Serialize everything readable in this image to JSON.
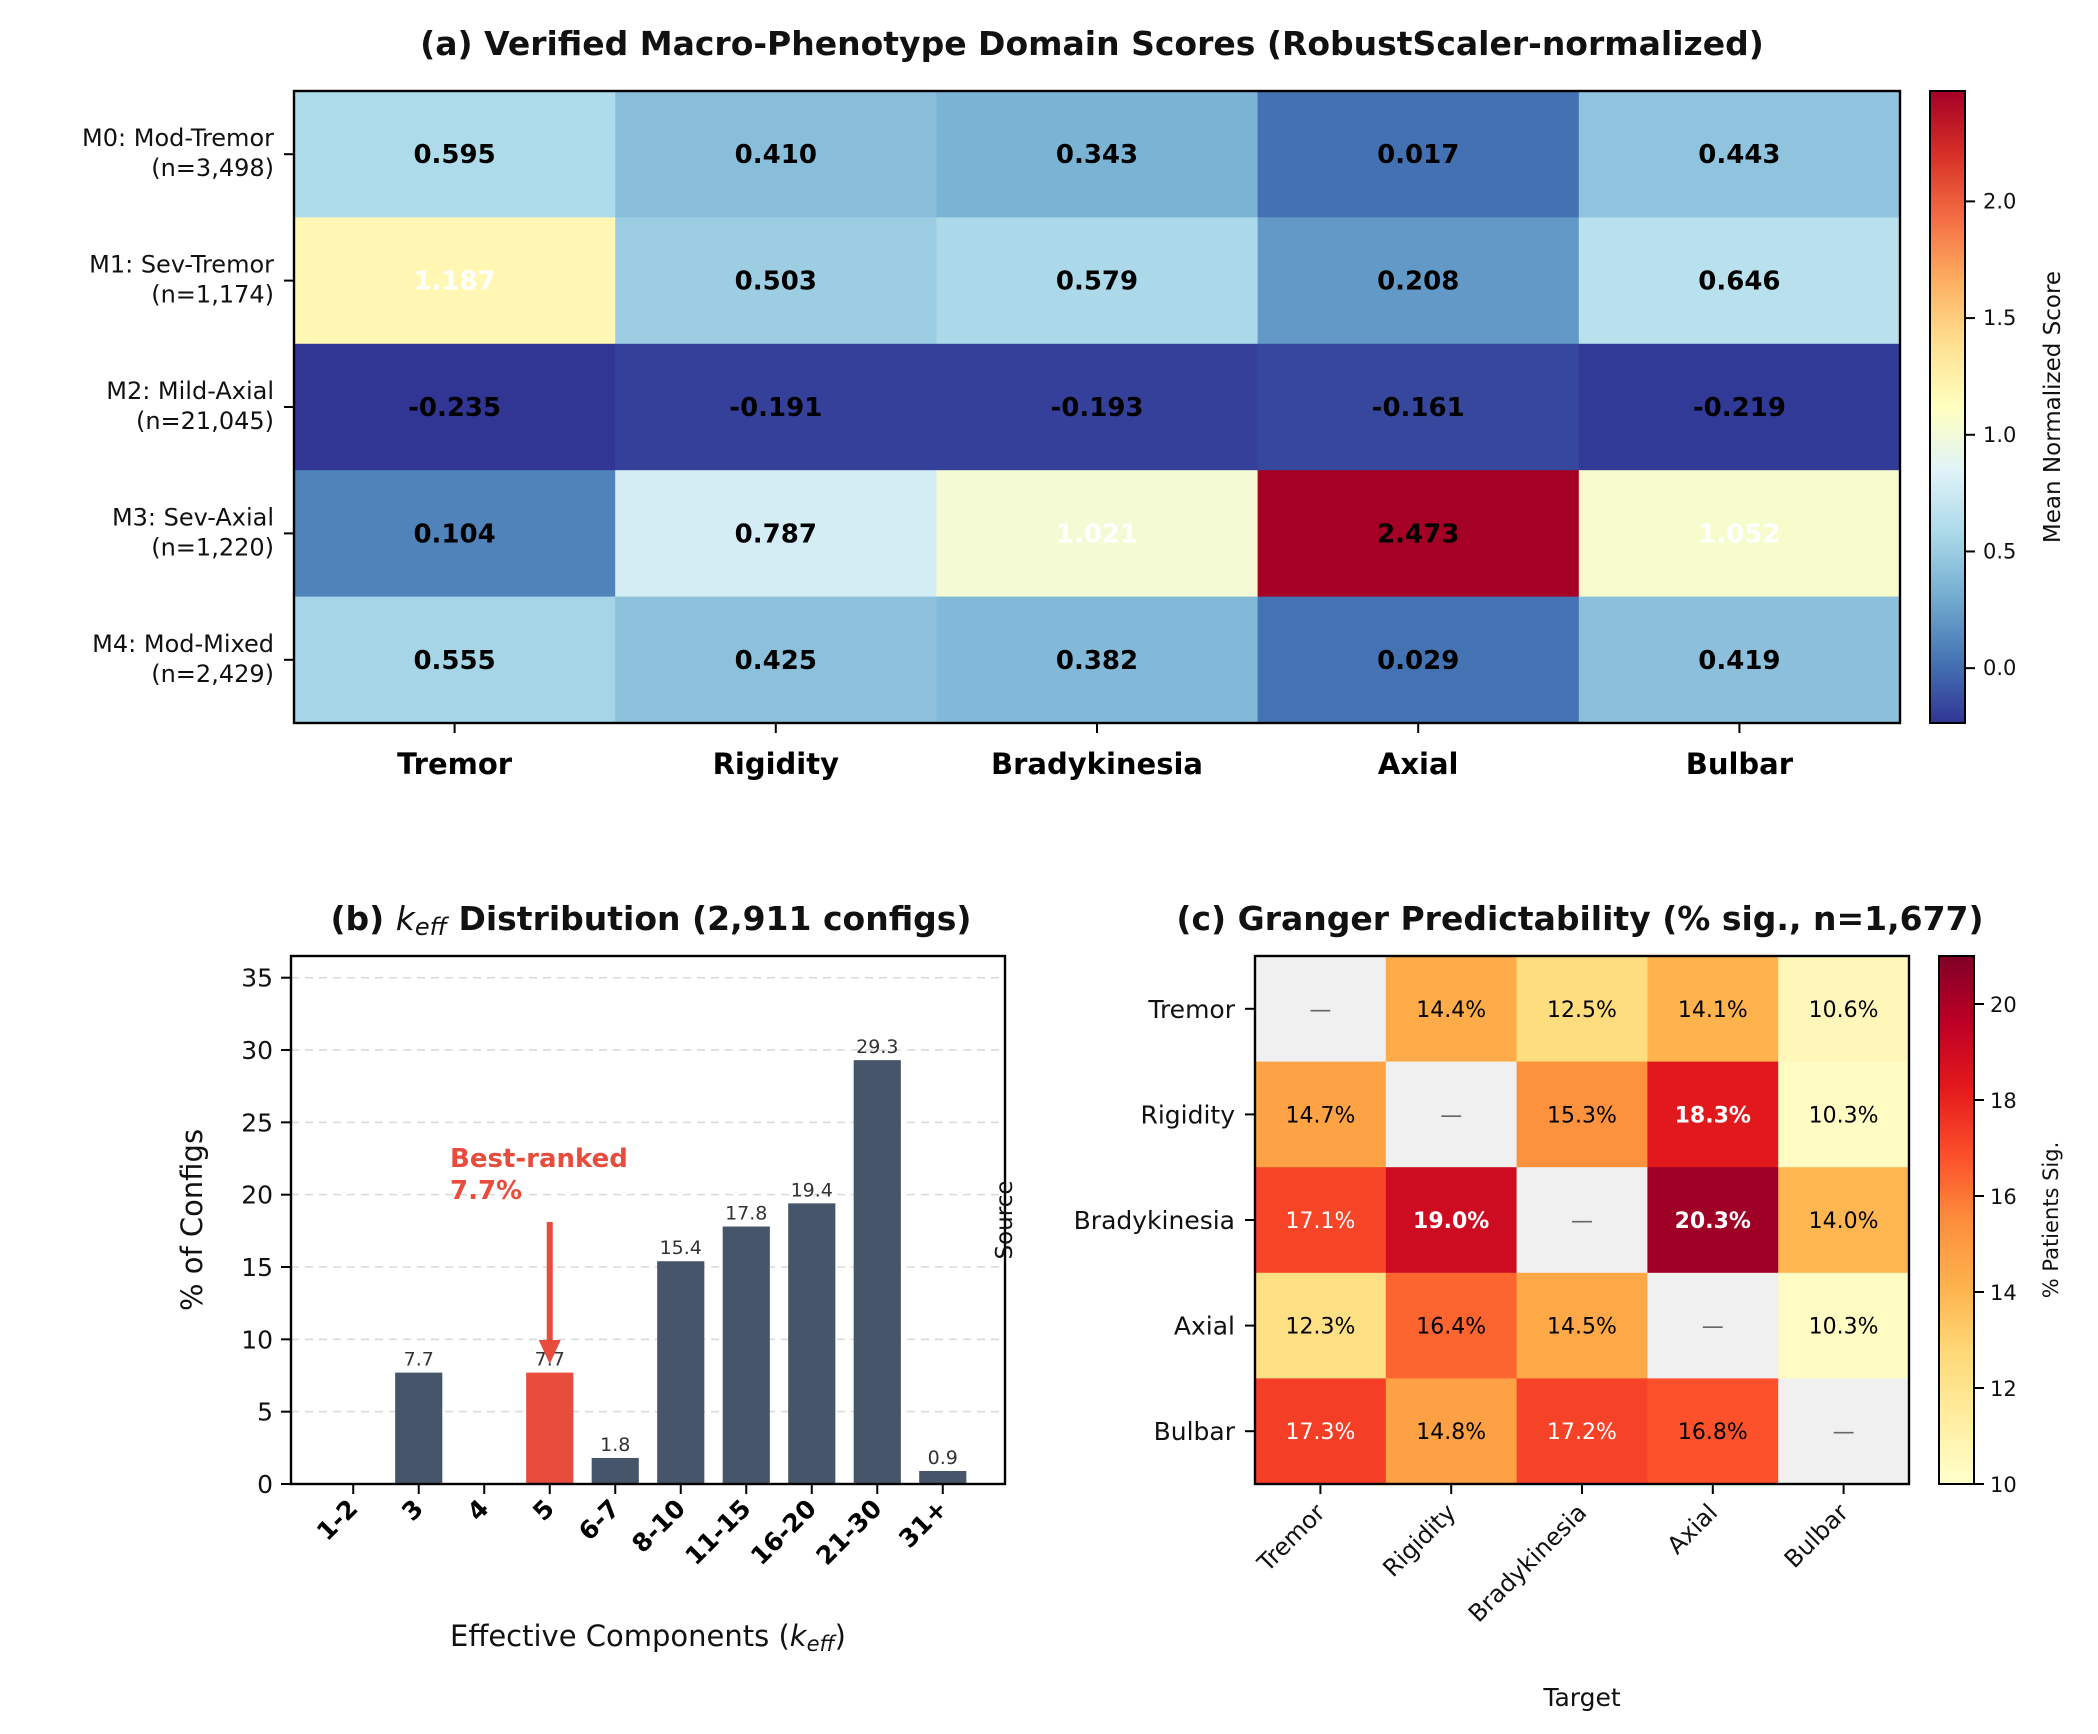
{
  "chart_data": [
    {
      "type": "heatmap",
      "title": "(a) Verified Macro-Phenotype Domain Scores (RobustScaler-normalized)",
      "row_labels": [
        [
          "M0: Mod-Tremor",
          "(n=3,498)"
        ],
        [
          "M1: Sev-Tremor",
          "(n=1,174)"
        ],
        [
          "M2: Mild-Axial",
          "(n=21,045)"
        ],
        [
          "M3: Sev-Axial",
          "(n=1,220)"
        ],
        [
          "M4: Mod-Mixed",
          "(n=2,429)"
        ]
      ],
      "col_labels": [
        "Tremor",
        "Rigidity",
        "Bradykinesia",
        "Axial",
        "Bulbar"
      ],
      "values": [
        [
          0.595,
          0.41,
          0.343,
          0.017,
          0.443
        ],
        [
          1.187,
          0.503,
          0.579,
          0.208,
          0.646
        ],
        [
          -0.235,
          -0.191,
          -0.193,
          -0.161,
          -0.219
        ],
        [
          0.104,
          0.787,
          1.021,
          2.473,
          1.052
        ],
        [
          0.555,
          0.425,
          0.382,
          0.029,
          0.419
        ]
      ],
      "cell_labels": [
        [
          "0.595",
          "0.410",
          "0.343",
          "0.017",
          "0.443"
        ],
        [
          "1.187",
          "0.503",
          "0.579",
          "0.208",
          "0.646"
        ],
        [
          "-0.235",
          "-0.191",
          "-0.193",
          "-0.161",
          "-0.219"
        ],
        [
          "0.104",
          "0.787",
          "1.021",
          "2.473",
          "1.052"
        ],
        [
          "0.555",
          "0.425",
          "0.382",
          "0.029",
          "0.419"
        ]
      ],
      "colormap": "RdYlBu_r",
      "vmin": -0.235,
      "vmax": 2.473,
      "colorbar_label": "Mean Normalized Score",
      "colorbar_ticks": [
        "0.0",
        "0.5",
        "1.0",
        "1.5",
        "2.0"
      ]
    },
    {
      "type": "bar",
      "title_prefix": "(b) ",
      "title_k": "k",
      "title_sub": "eff",
      "title_suffix": " Distribution (2,911 configs)",
      "categories": [
        "1-2",
        "3",
        "4",
        "5",
        "6-7",
        "8-10",
        "11-15",
        "16-20",
        "21-30",
        "31+"
      ],
      "values": [
        0,
        7.7,
        0,
        7.7,
        1.8,
        15.4,
        17.8,
        19.4,
        29.3,
        0.9
      ],
      "value_labels": [
        "",
        "7.7",
        "",
        "7.7",
        "1.8",
        "15.4",
        "17.8",
        "19.4",
        "29.3",
        "0.9"
      ],
      "highlight_index": 3,
      "bar_color": "#465569",
      "highlight_color": "#e74c3c",
      "annotation": [
        "Best-ranked",
        "7.7%"
      ],
      "annotation_color": "#e74c3c",
      "xlabel_prefix": "Effective Components (",
      "xlabel_k": "k",
      "xlabel_sub": "eff",
      "xlabel_suffix": ")",
      "ylabel": "% of Configs",
      "ylim": [
        0,
        36.5
      ],
      "yticks": [
        "0",
        "5",
        "10",
        "15",
        "20",
        "25",
        "30",
        "35"
      ],
      "grid": "y dashed"
    },
    {
      "type": "heatmap",
      "title": "(c) Granger Predictability (% sig., n=1,677)",
      "row_labels": [
        "Tremor",
        "Rigidity",
        "Bradykinesia",
        "Axial",
        "Bulbar"
      ],
      "col_labels": [
        "Tremor",
        "Rigidity",
        "Bradykinesia",
        "Axial",
        "Bulbar"
      ],
      "values": [
        [
          null,
          14.4,
          12.5,
          14.1,
          10.6
        ],
        [
          14.7,
          null,
          15.3,
          18.3,
          10.3
        ],
        [
          17.1,
          19.0,
          null,
          20.3,
          14.0
        ],
        [
          12.3,
          16.4,
          14.5,
          null,
          10.3
        ],
        [
          17.3,
          14.8,
          17.2,
          16.8,
          null
        ]
      ],
      "cell_labels": [
        [
          "—",
          "14.4%",
          "12.5%",
          "14.1%",
          "10.6%"
        ],
        [
          "14.7%",
          "—",
          "15.3%",
          "18.3%",
          "10.3%"
        ],
        [
          "17.1%",
          "19.0%",
          "—",
          "20.3%",
          "14.0%"
        ],
        [
          "12.3%",
          "16.4%",
          "14.5%",
          "—",
          "10.3%"
        ],
        [
          "17.3%",
          "14.8%",
          "17.2%",
          "16.8%",
          "—"
        ]
      ],
      "bold_cells": [
        [
          1,
          3
        ],
        [
          2,
          1
        ],
        [
          2,
          3
        ]
      ],
      "colormap": "YlOrRd",
      "vmin": 10,
      "vmax": 21,
      "diagonal_color": "#f0f0f0",
      "xlabel": "Target",
      "ylabel": "Source",
      "colorbar_label": "% Patients Sig.",
      "colorbar_ticks": [
        "10",
        "12",
        "14",
        "16",
        "18",
        "20"
      ]
    }
  ]
}
